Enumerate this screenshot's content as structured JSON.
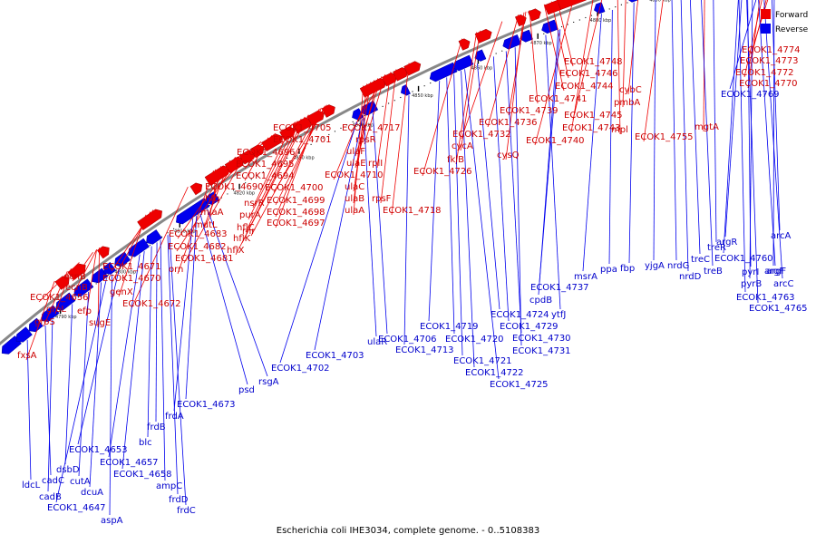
{
  "caption": "Escherichia coli IHE3034, complete genome. - 0..5108383",
  "legend": [
    {
      "label": "Forward",
      "color": "#ee0000"
    },
    {
      "label": "Reverse",
      "color": "#0000ee"
    }
  ],
  "colors": {
    "forward": "#ee0000",
    "reverse": "#0000ee",
    "backbone": "#888888",
    "ticks": "#000000"
  },
  "axis": {
    "start_kbp": 4790,
    "end_kbp": 4910,
    "step_kbp": 10,
    "unit": "kbp"
  },
  "forward_labels": [
    "fxsA",
    "groS",
    "groL",
    "ecnB",
    "ecnB",
    "efp",
    "sugE",
    "ECOK1_4656",
    "genX",
    "ECOK1_4670",
    "ECOK1_4671",
    "orn",
    "ECOK1_4672",
    "hfq",
    "miaA",
    "mutL",
    "ECOK1_4683",
    "ECOK1_4682",
    "ECOK1_4681",
    "ECOK1_4690",
    "ECOK1_4694",
    "ECOK1_4695",
    "ECOK1_4696",
    "ECOK1_4701",
    "ECOK1_4705",
    "nsrR",
    "purA",
    "hflC",
    "hflK",
    "hflX",
    "rnr",
    "ECOK1_4697",
    "ECOK1_4698",
    "ECOK1_4699",
    "ECOK1_4700",
    "ulaA",
    "ulaB",
    "ulaC",
    "ECOK1_4710",
    "ulaE",
    "ulaF",
    "rpsR",
    "ECOK1_4717",
    "rplI",
    "rpsF",
    "ECOK1_4718",
    "ECOK1_4726",
    "fklB",
    "cycA",
    "ECOK1_4732",
    "ECOK1_4736",
    "ECOK1_4739",
    "ECOK1_4741",
    "ECOK1_4744",
    "ECOK1_4746",
    "ECOK1_4748",
    "cysQ",
    "ECOK1_4740",
    "ECOK1_4743",
    "ECOK1_4745",
    "mpl",
    "pmbA",
    "cybC",
    "ECOK1_4755",
    "mgtA",
    "ECOK1_4770",
    "ECOK1_4772",
    "ECOK1_4773",
    "ECOK1_4774"
  ],
  "reverse_labels": [
    "ldcL",
    "cadC",
    "cadB",
    "dsbD",
    "cutA",
    "dcuA",
    "ECOK1_4647",
    "aspA",
    "ECOK1_4653",
    "ECOK1_4657",
    "ECOK1_4658",
    "blc",
    "frdB",
    "ampC",
    "frdD",
    "frdC",
    "frdA",
    "ECOK1_4673",
    "psd",
    "rsgA",
    "ECOK1_4702",
    "ECOK1_4703",
    "ulaR",
    "ECOK1_4706",
    "ECOK1_4713",
    "ECOK1_4719",
    "ECOK1_4720",
    "ECOK1_4721",
    "ECOK1_4722",
    "ECOK1_4725",
    "ECOK1_4724",
    "ECOK1_4729",
    "ECOK1_4730",
    "ECOK1_4731",
    "ytfJ",
    "cpdB",
    "ECOK1_4737",
    "msrA",
    "ppa",
    "fbp",
    "yjgA",
    "nrdG",
    "nrdD",
    "treC",
    "treB",
    "treR",
    "ECOK1_4760",
    "argR",
    "pyrI",
    "pyrB",
    "argF",
    "arcC",
    "arcA",
    "ECOK1_4763",
    "ECOK1_4765",
    "ECOK1_4769",
    "argF"
  ]
}
